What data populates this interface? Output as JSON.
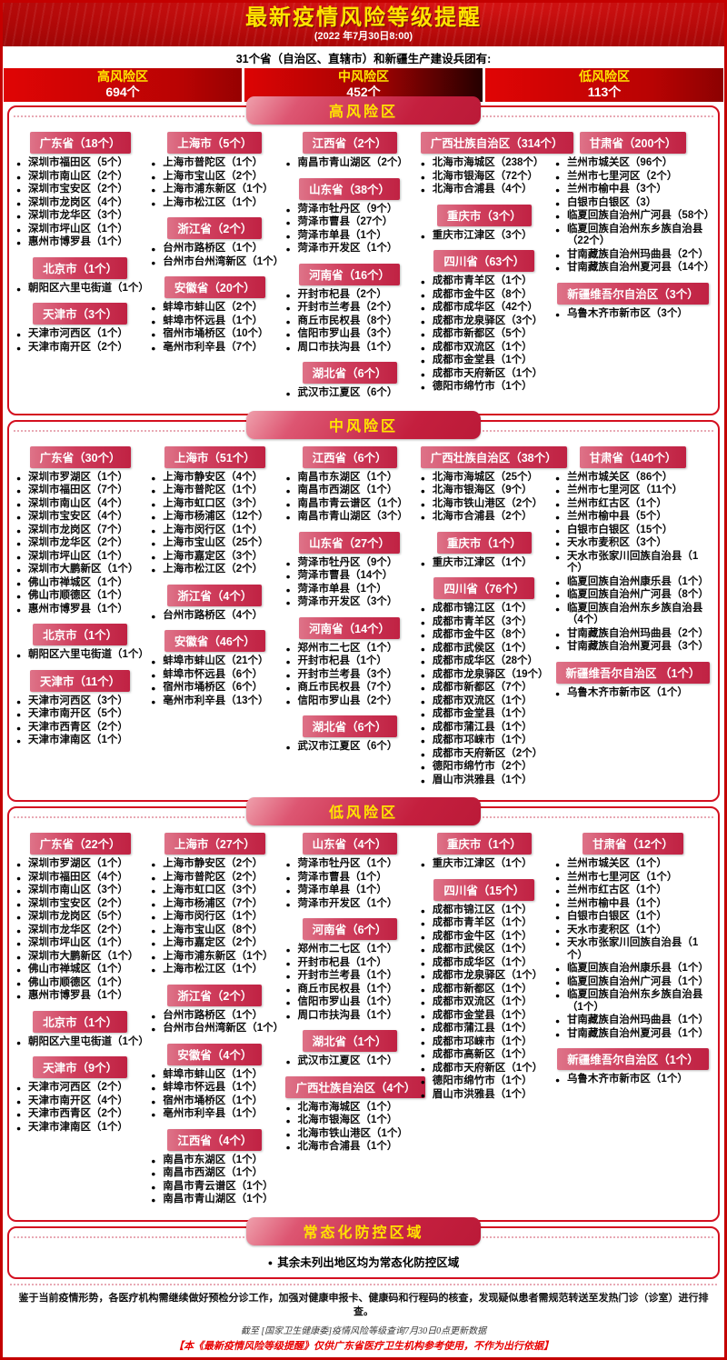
{
  "header": {
    "title": "最新疫情风险等级提醒",
    "date": "(2022 年7月30日8:00)",
    "subtitle": "31个省（自治区、直辖市）和新疆生产建设兵团有:",
    "stats": [
      {
        "label": "高风险区",
        "count": "694个"
      },
      {
        "label": "中风险区",
        "count": "452个"
      },
      {
        "label": "低风险区",
        "count": "113个"
      }
    ]
  },
  "colors": {
    "banner_red": "#b00808",
    "accent_red": "#d40f1f",
    "pill_red": "#c41f3e",
    "province_header_red": "#c02243",
    "highlight_yellow": "#ffe400"
  },
  "sections": [
    {
      "key": "high",
      "title": "高风险区",
      "columns": [
        [
          {
            "province": "广东省（18个）",
            "items": [
              "深圳市福田区（5个）",
              "深圳市南山区（2个）",
              "深圳市宝安区（2个）",
              "深圳市龙岗区（4个）",
              "深圳市龙华区（3个）",
              "深圳市坪山区（1个）",
              "惠州市博罗县（1个）"
            ]
          },
          {
            "province": "北京市（1个）",
            "items": [
              "朝阳区六里屯街道（1个）"
            ]
          },
          {
            "province": "天津市（3个）",
            "items": [
              "天津市河西区（1个）",
              "天津市南开区（2个）"
            ]
          }
        ],
        [
          {
            "province": "上海市（5个）",
            "items": [
              "上海市普陀区（1个）",
              "上海市宝山区（2个）",
              "上海市浦东新区（1个）",
              "上海市松江区（1个）"
            ]
          },
          {
            "province": "浙江省（2个）",
            "items": [
              "台州市路桥区（1个）",
              "台州市台州湾新区（1个）"
            ]
          },
          {
            "province": "安徽省（20个）",
            "items": [
              "蚌埠市蚌山区（2个）",
              "蚌埠市怀远县（1个）",
              "宿州市埇桥区（10个）",
              "亳州市利辛县（7个）"
            ]
          }
        ],
        [
          {
            "province": "江西省（2个）",
            "items": [
              "南昌市青山湖区（2个）"
            ]
          },
          {
            "province": "山东省（38个）",
            "items": [
              "菏泽市牡丹区（9个）",
              "菏泽市曹县（27个）",
              "菏泽市单县（1个）",
              "菏泽市开发区（1个）"
            ]
          },
          {
            "province": "河南省（16个）",
            "items": [
              "开封市杞县（2个）",
              "开封市兰考县（2个）",
              "商丘市民权县（8个）",
              "信阳市罗山县（3个）",
              "周口市扶沟县（1个）"
            ]
          },
          {
            "province": "湖北省（6个）",
            "items": [
              "武汉市江夏区（6个）"
            ]
          }
        ],
        [
          {
            "province": "广西壮族自治区（314个）",
            "items": [
              "北海市海城区（238个）",
              "北海市银海区（72个）",
              "北海市合浦县（4个）"
            ]
          },
          {
            "province": "重庆市（3个）",
            "items": [
              "重庆市江津区（3个）"
            ]
          },
          {
            "province": "四川省（63个）",
            "items": [
              "成都市青羊区（1个）",
              "成都市金牛区（8个）",
              "成都市成华区（42个）",
              "成都市龙泉驿区（3个）",
              "成都市新都区（5个）",
              "成都市双流区（1个）",
              "成都市金堂县（1个）",
              "成都市天府新区（1个）",
              "德阳市绵竹市（1个）"
            ]
          }
        ],
        [
          {
            "province": "甘肃省（200个）",
            "items": [
              "兰州市城关区（96个）",
              "兰州市七里河区（2个）",
              "兰州市榆中县（3个）",
              "白银市白银区（3）",
              "临夏回族自治州广河县（58个）",
              "临夏回族自治州东乡族自治县（22个）",
              "甘南藏族自治州玛曲县（2个）",
              "甘南藏族自治州夏河县（14个）"
            ]
          },
          {
            "province": "新疆维吾尔自治区（3个）",
            "items": [
              "乌鲁木齐市新市区（3个）"
            ]
          }
        ]
      ]
    },
    {
      "key": "medium",
      "title": "中风险区",
      "columns": [
        [
          {
            "province": "广东省（30个）",
            "items": [
              "深圳市罗湖区（1个）",
              "深圳市福田区（7个）",
              "深圳市南山区（4个）",
              "深圳市宝安区（4个）",
              "深圳市龙岗区（7个）",
              "深圳市龙华区（2个）",
              "深圳市坪山区（1个）",
              "深圳市大鹏新区（1个）",
              "佛山市禅城区（1个）",
              "佛山市顺德区（1个）",
              "惠州市博罗县（1个）"
            ]
          },
          {
            "province": "北京市（1个）",
            "items": [
              "朝阳区六里屯街道（1个）"
            ]
          },
          {
            "province": "天津市（11个）",
            "items": [
              "天津市河西区（3个）",
              "天津市南开区（5个）",
              "天津市西青区（2个）",
              "天津市津南区（1个）"
            ]
          }
        ],
        [
          {
            "province": "上海市（51个）",
            "items": [
              "上海市静安区（4个）",
              "上海市普陀区（1个）",
              "上海市虹口区（3个）",
              "上海市杨浦区（12个）",
              "上海市闵行区（1个）",
              "上海市宝山区（25个）",
              "上海市嘉定区（3个）",
              "上海市松江区（2个）"
            ]
          },
          {
            "province": "浙江省（4个）",
            "items": [
              "台州市路桥区（4个）"
            ]
          },
          {
            "province": "安徽省（46个）",
            "items": [
              "蚌埠市蚌山区（21个）",
              "蚌埠市怀远县（6个）",
              "宿州市埇桥区（6个）",
              "亳州市利辛县（13个）"
            ]
          }
        ],
        [
          {
            "province": "江西省（6个）",
            "items": [
              "南昌市东湖区（1个）",
              "南昌市西湖区（1个）",
              "南昌市青云谱区（1个）",
              "南昌市青山湖区（3个）"
            ]
          },
          {
            "province": "山东省（27个）",
            "items": [
              "菏泽市牡丹区（9个）",
              "菏泽市曹县（14个）",
              "菏泽市单县（1个）",
              "菏泽市开发区（3个）"
            ]
          },
          {
            "province": "河南省（14个）",
            "items": [
              "郑州市二七区（1个）",
              "开封市杞县（1个）",
              "开封市兰考县（3个）",
              "商丘市民权县（7个）",
              "信阳市罗山县（2个）"
            ]
          },
          {
            "province": "湖北省（6个）",
            "items": [
              "武汉市江夏区（6个）"
            ]
          }
        ],
        [
          {
            "province": "广西壮族自治区（38个）",
            "items": [
              "北海市海城区（25个）",
              "北海市银海区（9个）",
              "北海市铁山港区（2个）",
              "北海市合浦县（2个）"
            ]
          },
          {
            "province": "重庆市（1个）",
            "items": [
              "重庆市江津区（1个）"
            ]
          },
          {
            "province": "四川省（76个）",
            "items": [
              "成都市锦江区（1个）",
              "成都市青羊区（3个）",
              "成都市金牛区（8个）",
              "成都市武侯区（1个）",
              "成都市成华区（28个）",
              "成都市龙泉驿区（19个）",
              "成都市新都区（7个）",
              "成都市双流区（1个）",
              "成都市金堂县（1个）",
              "成都市蒲江县（1个）",
              "成都市邛崃市（1个）",
              "成都市天府新区（2个）",
              "德阳市绵竹市（2个）",
              "眉山市洪雅县（1个）"
            ]
          }
        ],
        [
          {
            "province": "甘肃省（140个）",
            "items": [
              "兰州市城关区（86个）",
              "兰州市七里河区（11个）",
              "兰州市红古区（1个）",
              "兰州市榆中县（5个）",
              "白银市白银区（15个）",
              "天水市麦积区（3个）",
              "天水市张家川回族自治县（1个）",
              "临夏回族自治州康乐县（1个）",
              "临夏回族自治州广河县（8个）",
              "临夏回族自治州东乡族自治县（4个）",
              "甘南藏族自治州玛曲县（2个）",
              "甘南藏族自治州夏河县（3个）"
            ]
          },
          {
            "province": "新疆维吾尔自治区 （1个）",
            "items": [
              "乌鲁木齐市新市区（1个）"
            ]
          }
        ]
      ]
    },
    {
      "key": "low",
      "title": "低风险区",
      "columns": [
        [
          {
            "province": "广东省（22个）",
            "items": [
              "深圳市罗湖区（1个）",
              "深圳市福田区（4个）",
              "深圳市南山区（3个）",
              "深圳市宝安区（2个）",
              "深圳市龙岗区（5个）",
              "深圳市龙华区（2个）",
              "深圳市坪山区（1个）",
              "深圳市大鹏新区（1个）",
              "佛山市禅城区（1个）",
              "佛山市顺德区（1个）",
              "惠州市博罗县（1个）"
            ]
          },
          {
            "province": "北京市（1个）",
            "items": [
              "朝阳区六里屯街道（1个）"
            ]
          },
          {
            "province": "天津市（9个）",
            "items": [
              "天津市河西区（2个）",
              "天津市南开区（4个）",
              "天津市西青区（2个）",
              "天津市津南区（1个）"
            ]
          }
        ],
        [
          {
            "province": "上海市（27个）",
            "items": [
              "上海市静安区（2个）",
              "上海市普陀区（2个）",
              "上海市虹口区（3个）",
              "上海市杨浦区（7个）",
              "上海市闵行区（1个）",
              "上海市宝山区（8个）",
              "上海市嘉定区（2个）",
              "上海市浦东新区（1个）",
              "上海市松江区（1个）"
            ]
          },
          {
            "province": "浙江省（2个）",
            "items": [
              "台州市路桥区（1个）",
              "台州市台州湾新区（1个）"
            ]
          },
          {
            "province": "安徽省（4个）",
            "items": [
              "蚌埠市蚌山区（1个）",
              "蚌埠市怀远县（1个）",
              "宿州市埇桥区（1个）",
              "亳州市利辛县（1个）"
            ]
          },
          {
            "province": "江西省（4个）",
            "items": [
              "南昌市东湖区（1个）",
              "南昌市西湖区（1个）",
              "南昌市青云谱区（1个）",
              "南昌市青山湖区（1个）"
            ]
          }
        ],
        [
          {
            "province": "山东省（4个）",
            "items": [
              "菏泽市牡丹区（1个）",
              "菏泽市曹县（1个）",
              "菏泽市单县（1个）",
              "菏泽市开发区（1个）"
            ]
          },
          {
            "province": "河南省（6个）",
            "items": [
              "郑州市二七区（1个）",
              "开封市杞县（1个）",
              "开封市兰考县（1个）",
              "商丘市民权县（1个）",
              "信阳市罗山县（1个）",
              "周口市扶沟县（1个）"
            ]
          },
          {
            "province": "湖北省（1个）",
            "items": [
              "武汉市江夏区（1个）"
            ]
          },
          {
            "province": "广西壮族自治区（4个）",
            "items": [
              "北海市海城区（1个）",
              "北海市银海区（1个）",
              "北海市铁山港区（1个）",
              "北海市合浦县（1个）"
            ]
          }
        ],
        [
          {
            "province": "重庆市（1个）",
            "items": [
              "重庆市江津区（1个）"
            ]
          },
          {
            "province": "四川省（15个）",
            "items": [
              "成都市锦江区（1个）",
              "成都市青羊区（1个）",
              "成都市金牛区（1个）",
              "成都市武侯区（1个）",
              "成都市成华区（1个）",
              "成都市龙泉驿区（1个）",
              "成都市新都区（1个）",
              "成都市双流区（1个）",
              "成都市金堂县（1个）",
              "成都市蒲江县（1个）",
              "成都市邛崃市（1个）",
              "成都市高新区（1个）",
              "成都市天府新区（1个）",
              "德阳市绵竹市（1个）",
              "眉山市洪雅县（1个）"
            ]
          }
        ],
        [
          {
            "province": "甘肃省（12个）",
            "items": [
              "兰州市城关区（1个）",
              "兰州市七里河区（1个）",
              "兰州市红古区（1个）",
              "兰州市榆中县（1个）",
              "白银市白银区（1个）",
              "天水市麦积区（1个）",
              "天水市张家川回族自治县（1个）",
              "临夏回族自治州康乐县（1个）",
              "临夏回族自治州广河县（1个）",
              "临夏回族自治州东乡族自治县（1个）",
              "甘南藏族自治州玛曲县（1个）",
              "甘南藏族自治州夏河县（1个）"
            ]
          },
          {
            "province": "新疆维吾尔自治区（1个）",
            "items": [
              "乌鲁木齐市新市区（1个）"
            ]
          }
        ]
      ]
    }
  ],
  "bottom": {
    "title": "常态化防控区域",
    "note": "其余未列出地区均为常态化防控区域"
  },
  "footer": {
    "line1": "鉴于当前疫情形势，各医疗机构需继续做好预检分诊工作，加强对健康申报卡、健康码和行程码的核查，发现疑似患者需规范转送至发热门诊（诊室）进行排查。",
    "line2": "截至 [国家卫生健康委]疫情风险等级查询7月30日0点更新数据",
    "line3": "【本《最新疫情风险等级提醒》仅供广东省医疗卫生机构参考使用，不作为出行依据】"
  }
}
